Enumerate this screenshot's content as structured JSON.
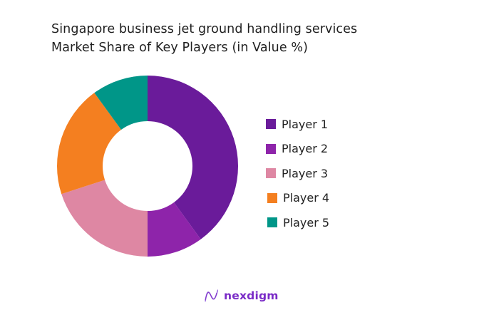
{
  "title": {
    "line1": "Singapore business jet ground handling services",
    "line2": "Market Share of Key Players (in Value %)"
  },
  "chart_data": {
    "type": "pie",
    "subtype": "donut",
    "title": "Singapore business jet ground handling services Market Share of Key Players (in Value %)",
    "categories": [
      "Player 1",
      "Player 2",
      "Player 3",
      "Player 4",
      "Player 5"
    ],
    "values": [
      40,
      10,
      20,
      20,
      10
    ],
    "colors": [
      "#6a1b9a",
      "#8e24aa",
      "#de87a3",
      "#f47f20",
      "#009688"
    ],
    "start_angle": "top (12 o'clock)",
    "direction": "clockwise",
    "legend_position": "right",
    "data_labels": false
  },
  "legend": {
    "items": [
      {
        "label": "Player 1",
        "color": "#6a1b9a"
      },
      {
        "label": "Player 2",
        "color": "#8e24aa"
      },
      {
        "label": "Player 3",
        "color": "#de87a3"
      },
      {
        "label": "Player 4",
        "color": "#f47f20"
      },
      {
        "label": "Player 5",
        "color": "#009688"
      }
    ]
  },
  "logo": {
    "text": "nexdigm",
    "color": "#7a2bc7"
  }
}
